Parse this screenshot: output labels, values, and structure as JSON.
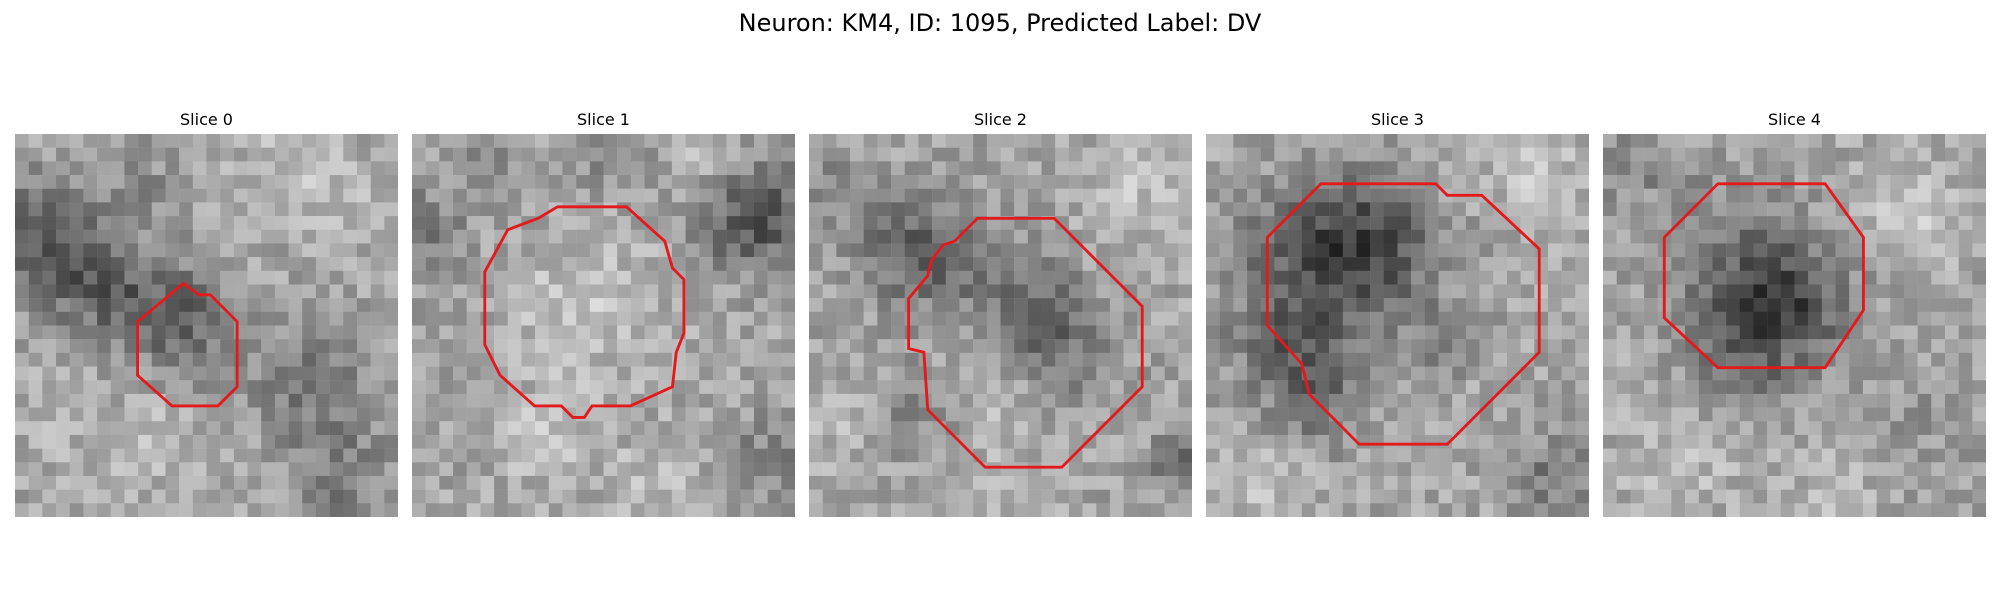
{
  "figure": {
    "title": "Neuron: KM4, ID: 1095, Predicted Label: DV"
  },
  "colors": {
    "background": "#ffffff",
    "contour": "#e31a1c"
  },
  "panels": [
    {
      "title": "Slice 0",
      "spots": [
        [
          0.05,
          0.25,
          0.1,
          -55
        ],
        [
          0.15,
          0.35,
          0.09,
          -60
        ],
        [
          0.3,
          0.45,
          0.09,
          -55
        ],
        [
          0.45,
          0.47,
          0.09,
          -45
        ],
        [
          0.33,
          0.15,
          0.08,
          -25
        ],
        [
          0.78,
          0.65,
          0.11,
          -45
        ],
        [
          0.85,
          0.9,
          0.09,
          -40
        ],
        [
          0.7,
          0.1,
          0.09,
          25
        ],
        [
          0.88,
          0.18,
          0.07,
          20
        ],
        [
          0.4,
          0.8,
          0.1,
          20
        ],
        [
          0.15,
          0.75,
          0.1,
          10
        ],
        [
          0.5,
          0.6,
          0.1,
          -20
        ]
      ],
      "contour": [
        [
          0.44,
          0.39
        ],
        [
          0.48,
          0.42
        ],
        [
          0.51,
          0.42
        ],
        [
          0.58,
          0.49
        ],
        [
          0.58,
          0.66
        ],
        [
          0.53,
          0.71
        ],
        [
          0.41,
          0.71
        ],
        [
          0.32,
          0.63
        ],
        [
          0.32,
          0.49
        ]
      ]
    },
    {
      "title": "Slice 1",
      "spots": [
        [
          0.02,
          0.25,
          0.08,
          -45
        ],
        [
          0.2,
          0.08,
          0.07,
          -30
        ],
        [
          0.55,
          0.05,
          0.08,
          -30
        ],
        [
          0.95,
          0.2,
          0.1,
          -55
        ],
        [
          0.85,
          0.25,
          0.08,
          -45
        ],
        [
          0.93,
          0.85,
          0.08,
          -35
        ],
        [
          0.1,
          0.6,
          0.08,
          -15
        ],
        [
          0.45,
          0.45,
          0.14,
          30
        ],
        [
          0.35,
          0.8,
          0.09,
          25
        ],
        [
          0.65,
          0.9,
          0.09,
          20
        ],
        [
          0.75,
          0.05,
          0.06,
          20
        ]
      ],
      "contour": [
        [
          0.38,
          0.19
        ],
        [
          0.56,
          0.19
        ],
        [
          0.66,
          0.28
        ],
        [
          0.68,
          0.35
        ],
        [
          0.71,
          0.38
        ],
        [
          0.71,
          0.52
        ],
        [
          0.69,
          0.57
        ],
        [
          0.68,
          0.66
        ],
        [
          0.57,
          0.71
        ],
        [
          0.47,
          0.71
        ],
        [
          0.45,
          0.74
        ],
        [
          0.42,
          0.74
        ],
        [
          0.39,
          0.71
        ],
        [
          0.32,
          0.71
        ],
        [
          0.23,
          0.63
        ],
        [
          0.19,
          0.55
        ],
        [
          0.19,
          0.36
        ],
        [
          0.25,
          0.25
        ],
        [
          0.33,
          0.22
        ]
      ]
    },
    {
      "title": "Slice 2",
      "spots": [
        [
          0.25,
          0.28,
          0.1,
          -50
        ],
        [
          0.35,
          0.35,
          0.09,
          -45
        ],
        [
          0.55,
          0.4,
          0.09,
          -40
        ],
        [
          0.65,
          0.55,
          0.1,
          -55
        ],
        [
          0.3,
          0.72,
          0.09,
          -35
        ],
        [
          0.97,
          0.86,
          0.06,
          -50
        ],
        [
          0.05,
          0.1,
          0.07,
          -25
        ],
        [
          0.45,
          0.68,
          0.09,
          30
        ],
        [
          0.85,
          0.15,
          0.1,
          25
        ],
        [
          0.1,
          0.75,
          0.08,
          20
        ],
        [
          0.5,
          0.9,
          0.07,
          15
        ]
      ],
      "contour": [
        [
          0.44,
          0.22
        ],
        [
          0.64,
          0.22
        ],
        [
          0.87,
          0.45
        ],
        [
          0.87,
          0.66
        ],
        [
          0.66,
          0.87
        ],
        [
          0.46,
          0.87
        ],
        [
          0.31,
          0.72
        ],
        [
          0.3,
          0.57
        ],
        [
          0.26,
          0.56
        ],
        [
          0.26,
          0.43
        ],
        [
          0.31,
          0.37
        ],
        [
          0.32,
          0.33
        ],
        [
          0.35,
          0.29
        ],
        [
          0.38,
          0.28
        ]
      ]
    },
    {
      "title": "Slice 3",
      "spots": [
        [
          0.3,
          0.32,
          0.14,
          -70
        ],
        [
          0.45,
          0.28,
          0.12,
          -60
        ],
        [
          0.22,
          0.55,
          0.11,
          -55
        ],
        [
          0.3,
          0.72,
          0.09,
          -45
        ],
        [
          0.6,
          0.55,
          0.08,
          -25
        ],
        [
          0.9,
          0.9,
          0.08,
          -45
        ],
        [
          0.55,
          0.75,
          0.1,
          10
        ],
        [
          0.85,
          0.1,
          0.09,
          30
        ],
        [
          0.15,
          0.9,
          0.1,
          25
        ],
        [
          0.6,
          0.1,
          0.07,
          15
        ]
      ],
      "contour": [
        [
          0.3,
          0.13
        ],
        [
          0.6,
          0.13
        ],
        [
          0.63,
          0.16
        ],
        [
          0.72,
          0.16
        ],
        [
          0.87,
          0.3
        ],
        [
          0.87,
          0.57
        ],
        [
          0.63,
          0.81
        ],
        [
          0.4,
          0.81
        ],
        [
          0.27,
          0.68
        ],
        [
          0.25,
          0.6
        ],
        [
          0.16,
          0.5
        ],
        [
          0.16,
          0.27
        ]
      ]
    },
    {
      "title": "Slice 4",
      "spots": [
        [
          0.4,
          0.4,
          0.14,
          -70
        ],
        [
          0.5,
          0.45,
          0.1,
          -50
        ],
        [
          0.35,
          0.6,
          0.09,
          -40
        ],
        [
          0.05,
          0.08,
          0.07,
          -30
        ],
        [
          0.2,
          0.12,
          0.06,
          -20
        ],
        [
          0.85,
          0.75,
          0.1,
          -15
        ],
        [
          0.8,
          0.2,
          0.1,
          30
        ],
        [
          0.2,
          0.85,
          0.1,
          25
        ],
        [
          0.6,
          0.9,
          0.08,
          20
        ]
      ],
      "contour": [
        [
          0.3,
          0.13
        ],
        [
          0.58,
          0.13
        ],
        [
          0.68,
          0.27
        ],
        [
          0.68,
          0.46
        ],
        [
          0.58,
          0.61
        ],
        [
          0.3,
          0.61
        ],
        [
          0.16,
          0.48
        ],
        [
          0.16,
          0.27
        ]
      ]
    }
  ]
}
